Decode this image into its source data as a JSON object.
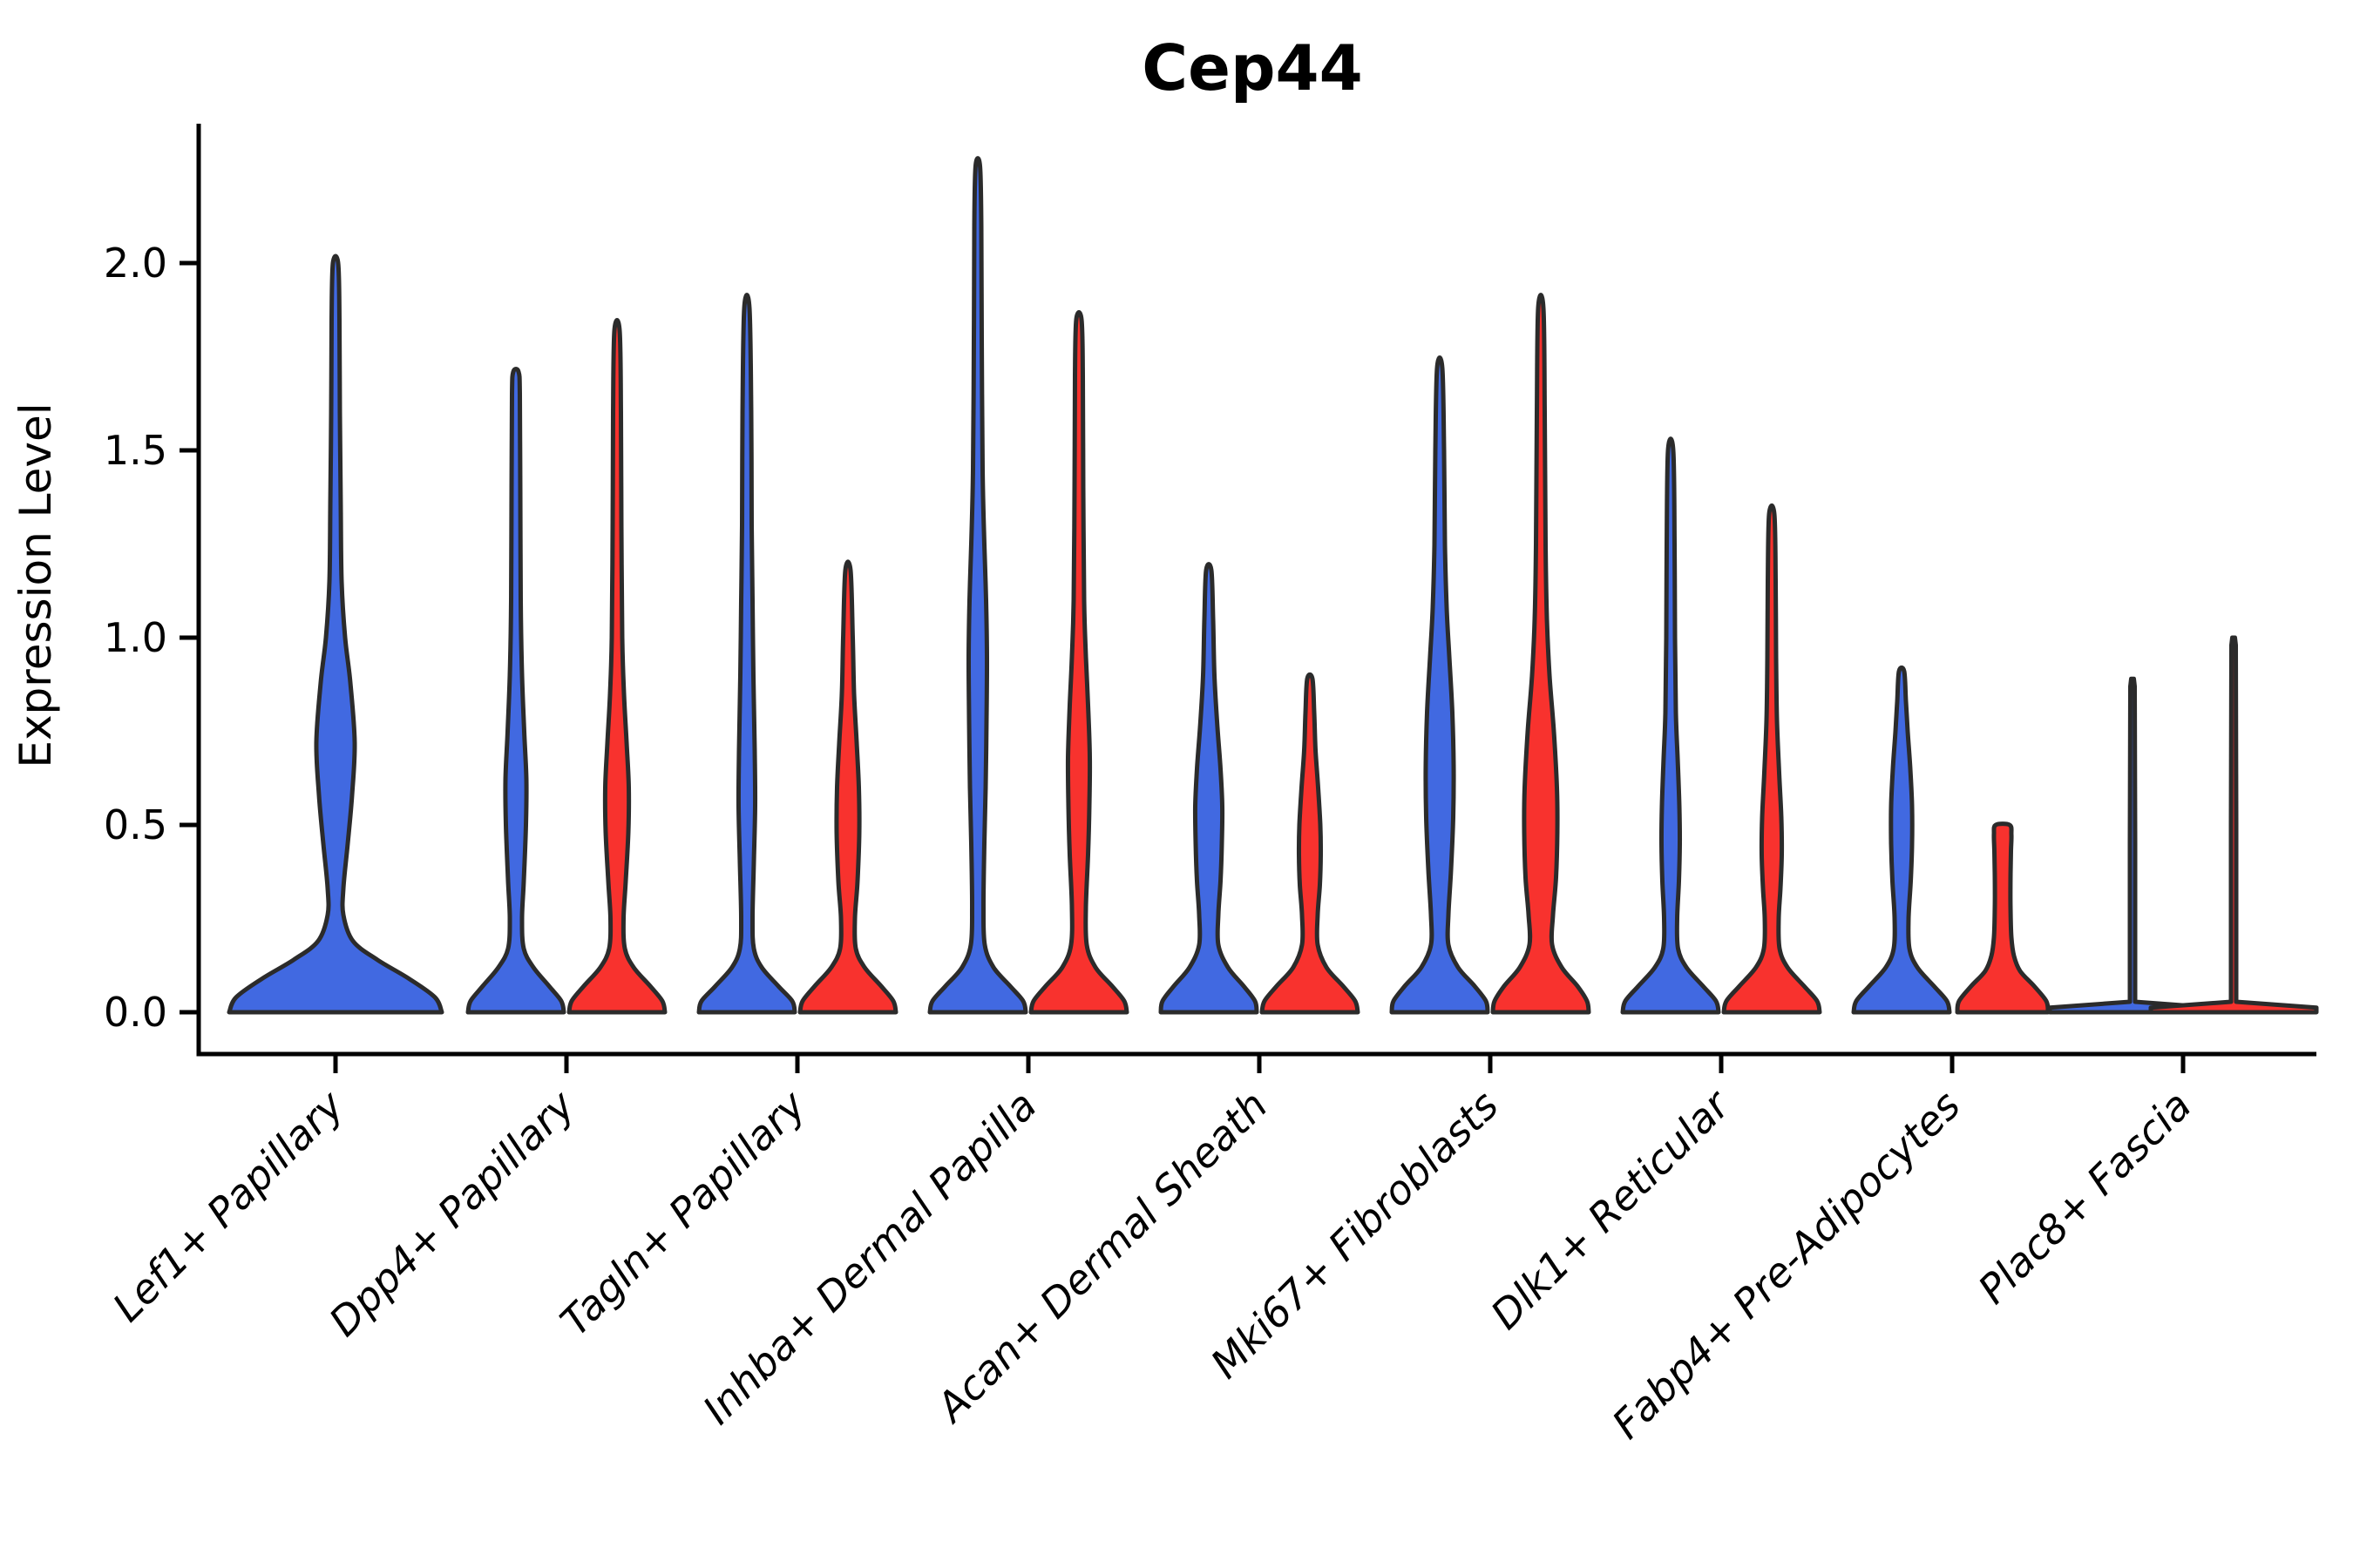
{
  "title": "Cep44",
  "axes": {
    "ylabel": "Expression Level",
    "yticklabels": [
      "0.0",
      "0.5",
      "1.0",
      "1.5",
      "2.0"
    ]
  },
  "colors": {
    "blue": "#4169E1",
    "red": "#F8322E",
    "edge": "#2B2B2B",
    "axis": "#000000"
  },
  "chart_data": {
    "type": "violin",
    "title": "Cep44",
    "xlabel": "",
    "ylabel": "Expression Level",
    "ylim": [
      0,
      2.39
    ],
    "yticks": [
      0,
      0.5,
      1.0,
      1.5,
      2.0
    ],
    "yticklabels": [
      "0.0",
      "0.5",
      "1.0",
      "1.5",
      "2.0"
    ],
    "grid": false,
    "legend": "none",
    "categories": [
      "Lef1+ Papillary",
      "Dpp4+ Papillary",
      "Tagln+ Papillary",
      "Inhba+ Dermal Papilla",
      "Acan+ Dermal Sheath",
      "Mki67+ Fibroblasts",
      "Dlk1+ Reticular",
      "Fabp4+ Pre-Adipocytes",
      "Plac8+ Fascia"
    ],
    "series_hues": [
      "blue",
      "red"
    ],
    "violins": [
      {
        "category_index": 0,
        "hue": "blue",
        "single": true,
        "shape": "violin",
        "max": 2.0,
        "profile": [
          [
            0,
            122
          ],
          [
            0.04,
            114
          ],
          [
            0.09,
            84
          ],
          [
            0.14,
            48
          ],
          [
            0.19,
            20
          ],
          [
            0.26,
            9
          ],
          [
            0.33,
            9
          ],
          [
            0.45,
            14
          ],
          [
            0.58,
            19
          ],
          [
            0.72,
            22
          ],
          [
            0.88,
            17
          ],
          [
            1.0,
            11
          ],
          [
            1.15,
            7
          ],
          [
            1.35,
            6
          ],
          [
            1.6,
            5
          ],
          [
            1.85,
            4.5
          ],
          [
            2.0,
            3
          ]
        ]
      },
      {
        "category_index": 1,
        "hue": "blue",
        "single": false,
        "shape": "violin",
        "max": 1.71,
        "profile": [
          [
            0,
            55
          ],
          [
            0.03,
            52
          ],
          [
            0.07,
            38
          ],
          [
            0.12,
            20
          ],
          [
            0.17,
            9
          ],
          [
            0.25,
            7
          ],
          [
            0.35,
            9
          ],
          [
            0.5,
            11.5
          ],
          [
            0.62,
            12
          ],
          [
            0.75,
            9.5
          ],
          [
            0.9,
            7
          ],
          [
            1.1,
            5.5
          ],
          [
            1.4,
            5
          ],
          [
            1.65,
            4.5
          ],
          [
            1.71,
            3
          ]
        ]
      },
      {
        "category_index": 1,
        "hue": "red",
        "single": false,
        "shape": "violin",
        "max": 1.82,
        "profile": [
          [
            0,
            55
          ],
          [
            0.03,
            52
          ],
          [
            0.07,
            38
          ],
          [
            0.12,
            19
          ],
          [
            0.17,
            9
          ],
          [
            0.25,
            7.5
          ],
          [
            0.35,
            10
          ],
          [
            0.48,
            13
          ],
          [
            0.6,
            13.5
          ],
          [
            0.72,
            11
          ],
          [
            0.85,
            8
          ],
          [
            1.0,
            6
          ],
          [
            1.3,
            5
          ],
          [
            1.6,
            4.5
          ],
          [
            1.82,
            3
          ]
        ]
      },
      {
        "category_index": 2,
        "hue": "blue",
        "single": false,
        "shape": "violin",
        "max": 1.88,
        "profile": [
          [
            0,
            55
          ],
          [
            0.03,
            52
          ],
          [
            0.07,
            36
          ],
          [
            0.12,
            17
          ],
          [
            0.17,
            8
          ],
          [
            0.25,
            6.5
          ],
          [
            0.4,
            8
          ],
          [
            0.55,
            9.5
          ],
          [
            0.7,
            9
          ],
          [
            0.9,
            7.5
          ],
          [
            1.1,
            6.5
          ],
          [
            1.3,
            5.5
          ],
          [
            1.6,
            5
          ],
          [
            1.88,
            3
          ]
        ]
      },
      {
        "category_index": 2,
        "hue": "red",
        "single": false,
        "shape": "violin",
        "max": 1.18,
        "profile": [
          [
            0,
            55
          ],
          [
            0.03,
            52
          ],
          [
            0.07,
            38
          ],
          [
            0.12,
            19
          ],
          [
            0.17,
            9
          ],
          [
            0.25,
            8
          ],
          [
            0.35,
            11
          ],
          [
            0.48,
            13
          ],
          [
            0.6,
            12.5
          ],
          [
            0.72,
            10
          ],
          [
            0.85,
            7
          ],
          [
            1.0,
            5.5
          ],
          [
            1.18,
            3
          ]
        ]
      },
      {
        "category_index": 3,
        "hue": "blue",
        "single": false,
        "shape": "violin",
        "max": 2.26,
        "profile": [
          [
            0,
            55
          ],
          [
            0.03,
            52
          ],
          [
            0.07,
            37
          ],
          [
            0.12,
            18
          ],
          [
            0.18,
            8
          ],
          [
            0.28,
            6.5
          ],
          [
            0.45,
            7.5
          ],
          [
            0.6,
            9
          ],
          [
            0.78,
            10
          ],
          [
            0.95,
            10.5
          ],
          [
            1.1,
            9.5
          ],
          [
            1.25,
            7.5
          ],
          [
            1.45,
            5.5
          ],
          [
            1.8,
            4.5
          ],
          [
            2.1,
            4
          ],
          [
            2.26,
            2.5
          ]
        ]
      },
      {
        "category_index": 3,
        "hue": "red",
        "single": false,
        "shape": "violin",
        "max": 1.85,
        "profile": [
          [
            0,
            55
          ],
          [
            0.03,
            52
          ],
          [
            0.07,
            38
          ],
          [
            0.12,
            19
          ],
          [
            0.18,
            9
          ],
          [
            0.28,
            8
          ],
          [
            0.42,
            10.5
          ],
          [
            0.55,
            12
          ],
          [
            0.68,
            12.5
          ],
          [
            0.82,
            10.5
          ],
          [
            0.95,
            8
          ],
          [
            1.1,
            6
          ],
          [
            1.4,
            5
          ],
          [
            1.7,
            4.5
          ],
          [
            1.85,
            3
          ]
        ]
      },
      {
        "category_index": 4,
        "hue": "blue",
        "single": false,
        "shape": "violin",
        "max": 1.18,
        "profile": [
          [
            0,
            55
          ],
          [
            0.03,
            53
          ],
          [
            0.07,
            40
          ],
          [
            0.12,
            22
          ],
          [
            0.18,
            11
          ],
          [
            0.26,
            11
          ],
          [
            0.35,
            13.5
          ],
          [
            0.45,
            15
          ],
          [
            0.55,
            15.5
          ],
          [
            0.65,
            13.5
          ],
          [
            0.76,
            10
          ],
          [
            0.9,
            6.5
          ],
          [
            1.05,
            5
          ],
          [
            1.18,
            3
          ]
        ]
      },
      {
        "category_index": 4,
        "hue": "red",
        "single": false,
        "shape": "violin",
        "max": 0.89,
        "profile": [
          [
            0,
            55
          ],
          [
            0.03,
            52
          ],
          [
            0.07,
            38
          ],
          [
            0.12,
            19
          ],
          [
            0.18,
            9
          ],
          [
            0.26,
            9
          ],
          [
            0.34,
            11.5
          ],
          [
            0.42,
            12.5
          ],
          [
            0.5,
            12
          ],
          [
            0.6,
            9.5
          ],
          [
            0.7,
            6.5
          ],
          [
            0.8,
            5
          ],
          [
            0.89,
            3
          ]
        ]
      },
      {
        "category_index": 5,
        "hue": "blue",
        "single": false,
        "shape": "violin",
        "max": 1.72,
        "profile": [
          [
            0,
            55
          ],
          [
            0.03,
            53
          ],
          [
            0.07,
            40
          ],
          [
            0.12,
            21
          ],
          [
            0.18,
            10
          ],
          [
            0.26,
            10
          ],
          [
            0.38,
            13
          ],
          [
            0.52,
            15.5
          ],
          [
            0.66,
            16
          ],
          [
            0.8,
            14.5
          ],
          [
            0.95,
            11
          ],
          [
            1.08,
            8
          ],
          [
            1.25,
            6
          ],
          [
            1.5,
            5
          ],
          [
            1.72,
            3
          ]
        ]
      },
      {
        "category_index": 5,
        "hue": "red",
        "single": false,
        "shape": "violin",
        "max": 1.88,
        "profile": [
          [
            0,
            55
          ],
          [
            0.03,
            53
          ],
          [
            0.07,
            42
          ],
          [
            0.12,
            24
          ],
          [
            0.18,
            13
          ],
          [
            0.26,
            14
          ],
          [
            0.36,
            17.5
          ],
          [
            0.48,
            19
          ],
          [
            0.6,
            18.5
          ],
          [
            0.75,
            15
          ],
          [
            0.9,
            10
          ],
          [
            1.05,
            7
          ],
          [
            1.25,
            5.5
          ],
          [
            1.6,
            4.5
          ],
          [
            1.88,
            3
          ]
        ]
      },
      {
        "category_index": 6,
        "hue": "blue",
        "single": false,
        "shape": "violin",
        "max": 1.5,
        "profile": [
          [
            0,
            55
          ],
          [
            0.03,
            52
          ],
          [
            0.07,
            37
          ],
          [
            0.12,
            18
          ],
          [
            0.17,
            8.5
          ],
          [
            0.25,
            7.5
          ],
          [
            0.35,
            9.5
          ],
          [
            0.45,
            10.5
          ],
          [
            0.55,
            10
          ],
          [
            0.68,
            8
          ],
          [
            0.8,
            6
          ],
          [
            1.0,
            5
          ],
          [
            1.25,
            4.5
          ],
          [
            1.5,
            3
          ]
        ]
      },
      {
        "category_index": 6,
        "hue": "red",
        "single": false,
        "shape": "violin",
        "max": 1.33,
        "profile": [
          [
            0,
            55
          ],
          [
            0.03,
            52
          ],
          [
            0.07,
            37
          ],
          [
            0.12,
            18
          ],
          [
            0.17,
            9
          ],
          [
            0.25,
            8
          ],
          [
            0.33,
            10
          ],
          [
            0.42,
            11.5
          ],
          [
            0.52,
            11
          ],
          [
            0.64,
            8.5
          ],
          [
            0.78,
            6
          ],
          [
            0.95,
            5
          ],
          [
            1.15,
            4.5
          ],
          [
            1.33,
            3
          ]
        ]
      },
      {
        "category_index": 7,
        "hue": "blue",
        "single": false,
        "shape": "violin",
        "max": 0.91,
        "profile": [
          [
            0,
            55
          ],
          [
            0.03,
            52
          ],
          [
            0.07,
            37
          ],
          [
            0.12,
            18
          ],
          [
            0.17,
            9
          ],
          [
            0.25,
            8
          ],
          [
            0.35,
            10.5
          ],
          [
            0.45,
            12
          ],
          [
            0.55,
            12
          ],
          [
            0.65,
            10
          ],
          [
            0.75,
            7
          ],
          [
            0.83,
            5
          ],
          [
            0.91,
            3
          ]
        ]
      },
      {
        "category_index": 7,
        "hue": "red",
        "single": false,
        "shape": "violin",
        "max": 0.5,
        "profile": [
          [
            0,
            52
          ],
          [
            0.03,
            50
          ],
          [
            0.07,
            36
          ],
          [
            0.11,
            20
          ],
          [
            0.15,
            13
          ],
          [
            0.2,
            10
          ],
          [
            0.28,
            9
          ],
          [
            0.36,
            9
          ],
          [
            0.43,
            9.5
          ],
          [
            0.475,
            10
          ],
          [
            0.5,
            8
          ]
        ]
      },
      {
        "category_index": 8,
        "hue": "blue",
        "single": false,
        "shape": "line",
        "max": 0.89,
        "profile": [
          [
            0,
            95
          ],
          [
            0.012,
            95
          ],
          [
            0.028,
            3
          ],
          [
            0.45,
            3
          ],
          [
            0.87,
            2.5
          ],
          [
            0.89,
            1.5
          ]
        ]
      },
      {
        "category_index": 8,
        "hue": "red",
        "single": false,
        "shape": "line",
        "max": 1.0,
        "profile": [
          [
            0,
            95
          ],
          [
            0.012,
            95
          ],
          [
            0.028,
            3
          ],
          [
            0.5,
            3
          ],
          [
            0.98,
            2.5
          ],
          [
            1.0,
            1.5
          ]
        ]
      }
    ]
  }
}
